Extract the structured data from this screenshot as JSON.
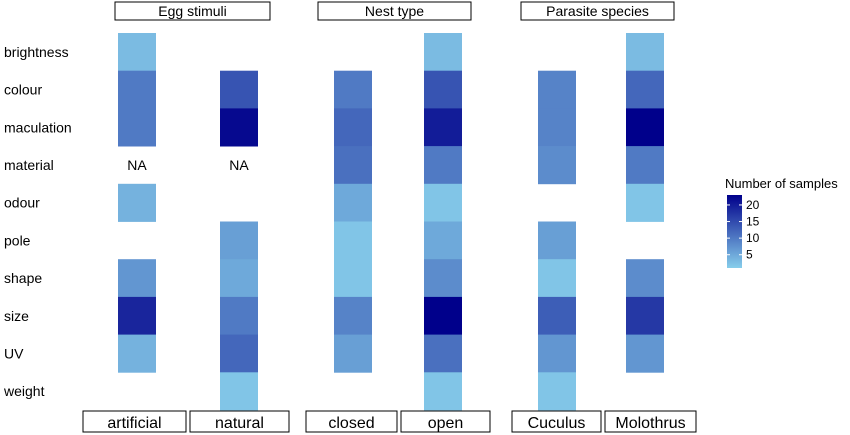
{
  "chart_data": {
    "type": "heatmap",
    "rows": [
      "brightness",
      "colour",
      "maculation",
      "material",
      "odour",
      "pole",
      "shape",
      "size",
      "UV",
      "weight"
    ],
    "facets": [
      {
        "label": "Egg stimuli",
        "columns": [
          {
            "label": "artificial",
            "values": [
              3,
              10,
              10,
              "NA",
              4,
              null,
              7,
              19,
              4,
              null
            ]
          },
          {
            "label": "natural",
            "values": [
              null,
              14,
              22,
              "NA",
              null,
              6,
              5,
              10,
              12,
              2
            ]
          }
        ]
      },
      {
        "label": "Nest type",
        "columns": [
          {
            "label": "closed",
            "values": [
              null,
              10,
              12,
              11,
              5,
              2,
              2,
              9,
              6,
              null
            ]
          },
          {
            "label": "open",
            "values": [
              3,
              14,
              20,
              10,
              2,
              5,
              8,
              23,
              11,
              2
            ]
          }
        ]
      },
      {
        "label": "Parasite species",
        "columns": [
          {
            "label": "Cuculus",
            "values": [
              null,
              9,
              9,
              8,
              null,
              6,
              2,
              13,
              7,
              2
            ]
          },
          {
            "label": "Molothrus",
            "values": [
              3,
              12,
              23,
              10,
              2,
              null,
              8,
              17,
              7,
              null
            ]
          }
        ]
      }
    ],
    "legend": {
      "title": "Number of samples",
      "ticks": [
        5,
        10,
        15,
        20
      ],
      "min": 1,
      "max": 23,
      "color_low": "#87ceeb",
      "color_high": "#00008b",
      "placement": "right"
    },
    "na_text": "NA"
  }
}
